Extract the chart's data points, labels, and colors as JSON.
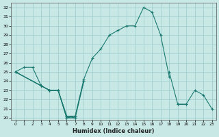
{
  "xlabel": "Humidex (Indice chaleur)",
  "xlim": [
    -0.5,
    23.5
  ],
  "ylim": [
    19.8,
    32.5
  ],
  "yticks": [
    20,
    21,
    22,
    23,
    24,
    25,
    26,
    27,
    28,
    29,
    30,
    31,
    32
  ],
  "xticks": [
    0,
    1,
    2,
    3,
    4,
    5,
    6,
    7,
    8,
    9,
    10,
    11,
    12,
    13,
    14,
    15,
    16,
    17,
    18,
    19,
    20,
    21,
    22,
    23
  ],
  "bg_color": "#c8e8e5",
  "grid_color": "#99ccca",
  "line_color": "#1a7a70",
  "series": [
    [
      {
        "x": [
          0,
          1,
          2,
          3,
          4,
          5,
          6,
          7,
          8
        ],
        "y": [
          25.0,
          25.5,
          25.5,
          23.5,
          23.0,
          23.0,
          20.0,
          20.2,
          24.0
        ]
      }
    ],
    [
      {
        "x": [
          0,
          3,
          4,
          5,
          6,
          7,
          8,
          9,
          10,
          11,
          12,
          13,
          14,
          15,
          16,
          17,
          18
        ],
        "y": [
          25.0,
          23.5,
          23.0,
          23.0,
          20.2,
          20.2,
          24.2,
          26.5,
          27.5,
          29.0,
          29.5,
          30.0,
          30.0,
          32.0,
          31.5,
          29.0,
          24.5
        ]
      }
    ],
    [
      {
        "x": [
          0,
          3,
          4,
          5,
          6,
          7,
          8
        ],
        "y": [
          25.0,
          23.5,
          23.0,
          23.0,
          20.2,
          20.0,
          24.0
        ]
      },
      {
        "x": [
          18,
          19,
          20,
          21,
          22,
          23
        ],
        "y": [
          25.0,
          21.5,
          21.5,
          23.0,
          22.5,
          21.0
        ]
      }
    ],
    [
      {
        "x": [
          0,
          3,
          4,
          5,
          6,
          7
        ],
        "y": [
          25.0,
          23.5,
          23.0,
          23.0,
          20.0,
          20.0
        ]
      },
      {
        "x": [
          19,
          20
        ],
        "y": [
          21.5,
          21.5
        ]
      }
    ]
  ]
}
